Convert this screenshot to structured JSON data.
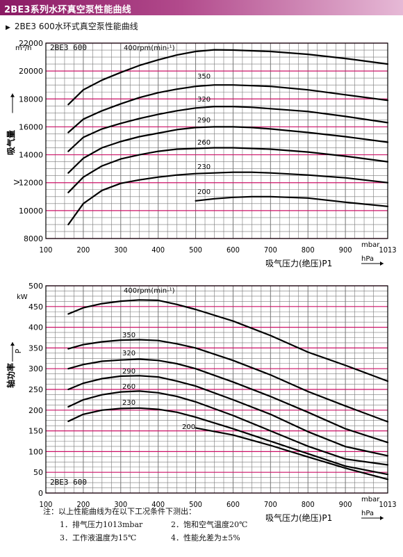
{
  "banner": {
    "title": "2BE3系列水环真空泵性能曲线"
  },
  "subtitle": {
    "marker": "▶",
    "text": "2BE3 600水环式真空泵性能曲线"
  },
  "colors": {
    "banner": "#8a1a63",
    "major_grid": "#cc1166",
    "minor_grid": "#777777",
    "curve": "#000000"
  },
  "chart_data": [
    {
      "type": "line",
      "title": "2BE3 600",
      "y_label": "吸气量",
      "y_symbol": "V",
      "y_unit": "m³/h",
      "x_label": "吸气压力(绝压)P1",
      "x_unit_top": "mbar",
      "x_unit_bottom": "hPa",
      "x_ticks": [
        "100",
        "200",
        "300",
        "400",
        "500",
        "600",
        "700",
        "800",
        "900",
        "1013"
      ],
      "y_ticks": [
        "8000",
        "10000",
        "12000",
        "14000",
        "16000",
        "18000",
        "20000",
        "22000"
      ],
      "xlim": [
        100,
        1013
      ],
      "ylim": [
        8000,
        22000
      ],
      "series": [
        {
          "name": "400rpm(min-¹)",
          "x": [
            160,
            200,
            250,
            300,
            350,
            400,
            450,
            500,
            550,
            600,
            650,
            700,
            800,
            900,
            1013
          ],
          "y": [
            17600,
            18650,
            19350,
            19900,
            20400,
            20800,
            21150,
            21400,
            21520,
            21500,
            21450,
            21400,
            21200,
            20900,
            20500
          ]
        },
        {
          "name": "350",
          "x": [
            160,
            200,
            250,
            300,
            350,
            400,
            450,
            500,
            550,
            600,
            650,
            700,
            800,
            900,
            1013
          ],
          "y": [
            15600,
            16550,
            17150,
            17650,
            18100,
            18450,
            18700,
            18900,
            19000,
            19000,
            18950,
            18900,
            18650,
            18300,
            17900
          ]
        },
        {
          "name": "320",
          "x": [
            160,
            200,
            250,
            300,
            350,
            400,
            450,
            500,
            550,
            600,
            650,
            700,
            800,
            900,
            1013
          ],
          "y": [
            14250,
            15250,
            15850,
            16250,
            16600,
            16900,
            17150,
            17350,
            17450,
            17450,
            17400,
            17300,
            17100,
            16750,
            16300
          ]
        },
        {
          "name": "290",
          "x": [
            160,
            200,
            250,
            300,
            350,
            400,
            450,
            500,
            550,
            600,
            650,
            700,
            800,
            900,
            1013
          ],
          "y": [
            12700,
            13750,
            14500,
            14950,
            15300,
            15550,
            15800,
            15950,
            16000,
            16000,
            15950,
            15850,
            15600,
            15300,
            14900
          ]
        },
        {
          "name": "260",
          "x": [
            160,
            200,
            250,
            300,
            350,
            400,
            450,
            500,
            550,
            600,
            650,
            700,
            800,
            900,
            1013
          ],
          "y": [
            11300,
            12400,
            13200,
            13700,
            14000,
            14250,
            14400,
            14450,
            14500,
            14500,
            14450,
            14400,
            14200,
            13900,
            13500
          ]
        },
        {
          "name": "230",
          "x": [
            160,
            200,
            250,
            300,
            350,
            400,
            450,
            500,
            550,
            600,
            650,
            700,
            800,
            900,
            1013
          ],
          "y": [
            9000,
            10500,
            11450,
            11950,
            12200,
            12400,
            12550,
            12650,
            12700,
            12750,
            12750,
            12700,
            12550,
            12350,
            12000
          ]
        },
        {
          "name": "200",
          "x": [
            500,
            550,
            600,
            650,
            700,
            800,
            900,
            1013
          ],
          "y": [
            10700,
            10850,
            10950,
            11000,
            11000,
            10900,
            10600,
            10300
          ]
        }
      ]
    },
    {
      "type": "line",
      "title": "2BE3 600",
      "y_label": "轴功率",
      "y_symbol": "P",
      "y_unit": "kW",
      "x_label": "吸气压力(绝压)P1",
      "x_unit_top": "mbar",
      "x_unit_bottom": "hPa",
      "x_ticks": [
        "100",
        "200",
        "300",
        "400",
        "500",
        "600",
        "700",
        "800",
        "900",
        "1013"
      ],
      "y_ticks": [
        "0",
        "50",
        "100",
        "150",
        "200",
        "250",
        "300",
        "350",
        "400",
        "450",
        "500"
      ],
      "xlim": [
        100,
        1013
      ],
      "ylim": [
        0,
        500
      ],
      "series": [
        {
          "name": "400rpm(min-¹)",
          "x": [
            160,
            200,
            250,
            300,
            350,
            400,
            450,
            500,
            600,
            700,
            800,
            900,
            1013
          ],
          "y": [
            432,
            447,
            457,
            463,
            466,
            465,
            455,
            443,
            415,
            380,
            340,
            308,
            270
          ]
        },
        {
          "name": "350",
          "x": [
            160,
            200,
            250,
            300,
            350,
            400,
            450,
            500,
            600,
            700,
            800,
            900,
            1013
          ],
          "y": [
            348,
            358,
            365,
            369,
            370,
            368,
            360,
            350,
            320,
            285,
            245,
            210,
            172
          ]
        },
        {
          "name": "320",
          "x": [
            160,
            200,
            250,
            300,
            350,
            400,
            450,
            500,
            600,
            700,
            800,
            900,
            1013
          ],
          "y": [
            300,
            310,
            318,
            321,
            323,
            320,
            312,
            300,
            268,
            233,
            195,
            155,
            122
          ]
        },
        {
          "name": "290",
          "x": [
            160,
            200,
            250,
            300,
            350,
            400,
            450,
            500,
            600,
            700,
            800,
            900,
            1013
          ],
          "y": [
            250,
            265,
            276,
            282,
            283,
            280,
            270,
            258,
            225,
            190,
            148,
            112,
            90
          ]
        },
        {
          "name": "260",
          "x": [
            160,
            200,
            250,
            300,
            350,
            400,
            450,
            500,
            600,
            700,
            800,
            900,
            1013
          ],
          "y": [
            208,
            225,
            237,
            244,
            246,
            242,
            233,
            220,
            187,
            150,
            113,
            82,
            68
          ]
        },
        {
          "name": "230",
          "x": [
            160,
            200,
            250,
            300,
            350,
            400,
            450,
            500,
            600,
            700,
            800,
            900,
            1013
          ],
          "y": [
            173,
            190,
            200,
            204,
            205,
            202,
            195,
            183,
            155,
            125,
            95,
            65,
            45
          ]
        },
        {
          "name": "200",
          "x": [
            500,
            600,
            700,
            800,
            900,
            1013
          ],
          "y": [
            157,
            140,
            115,
            87,
            60,
            33
          ]
        }
      ]
    }
  ],
  "notes": {
    "heading": "注：以上性能曲线为在以下工况条件下测出：",
    "item1": "1．排气压力1013mbar",
    "item2": "2．饱和空气温度20℃",
    "item3": "3．工作液温度为15℃",
    "item4": "4．性能允差为±5%"
  }
}
